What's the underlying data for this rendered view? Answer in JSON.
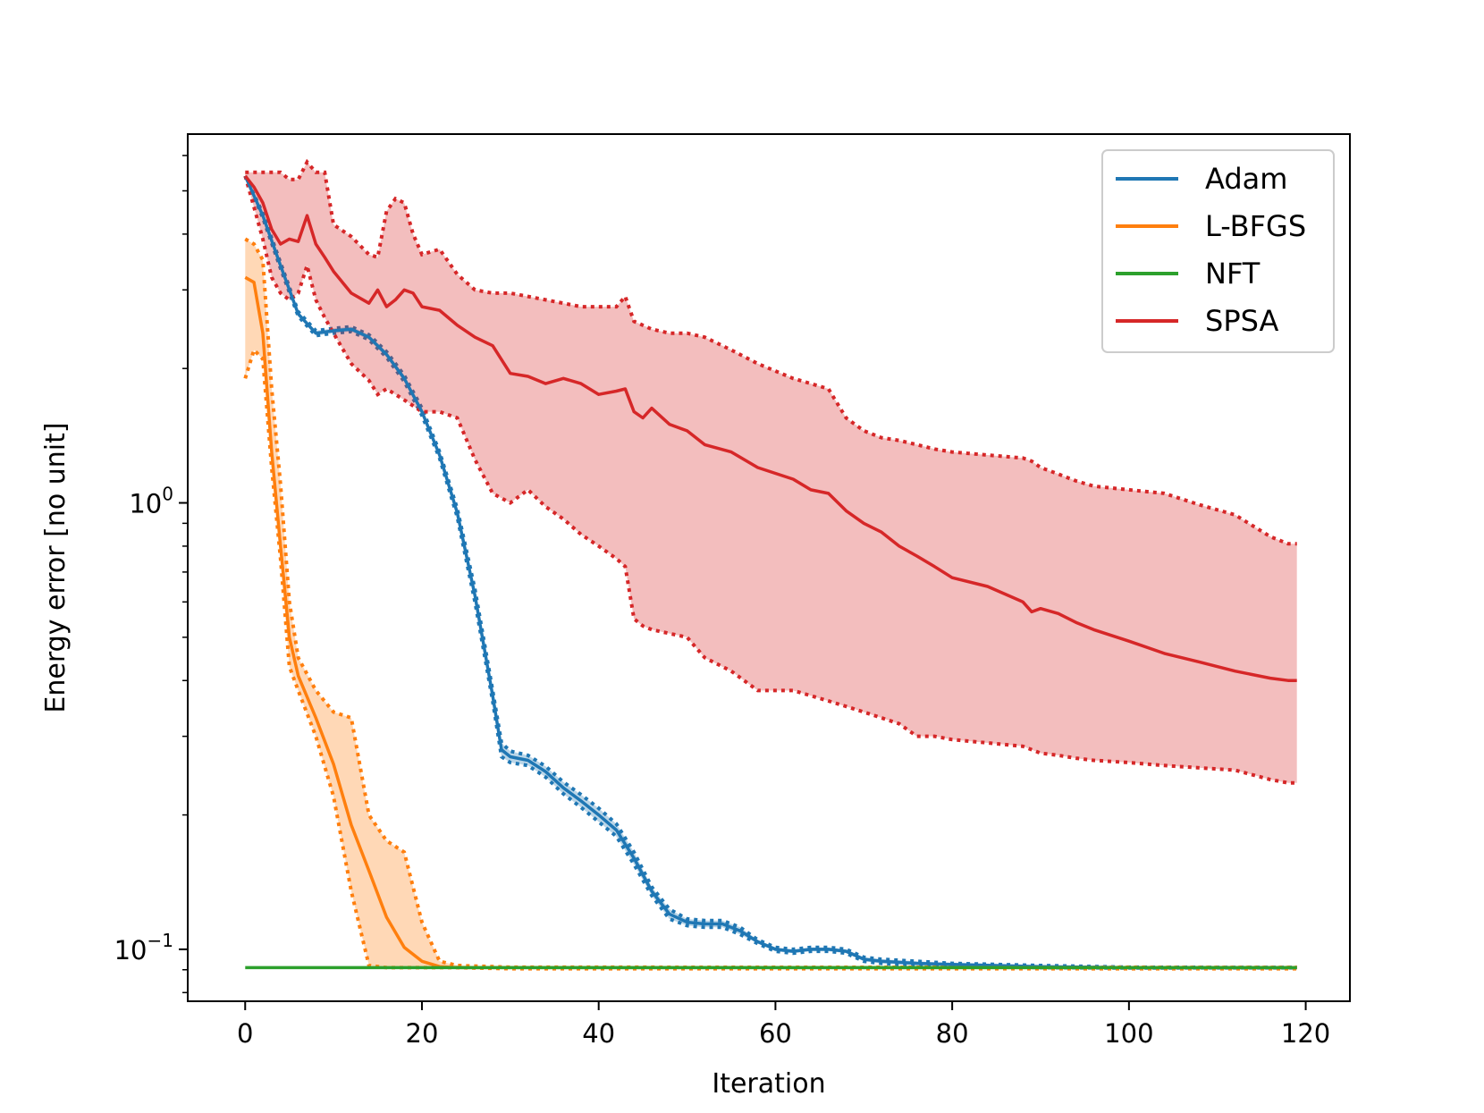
{
  "chart_data": {
    "type": "line",
    "xlabel": "Iteration",
    "ylabel": "Energy error [no unit]",
    "yscale": "log",
    "xlim": [
      -6.5,
      125
    ],
    "ylim": [
      0.0765,
      6.7
    ],
    "x_ticks": [
      0,
      20,
      40,
      60,
      80,
      100,
      120
    ],
    "y_ticks": [
      {
        "value": 1.0,
        "base": "10",
        "exp": "0"
      },
      {
        "value": 0.1,
        "base": "10",
        "exp": "−1"
      }
    ],
    "legend": {
      "placement": "top-right",
      "entries": [
        "Adam",
        "L-BFGS",
        "NFT",
        "SPSA"
      ]
    },
    "series": [
      {
        "name": "Adam",
        "color": "#1f77b4",
        "x": [
          0,
          2,
          4,
          6,
          8,
          10,
          12,
          14,
          16,
          18,
          20,
          22,
          24,
          26,
          28,
          29,
          30,
          32,
          34,
          36,
          38,
          40,
          42,
          44,
          46,
          48,
          50,
          52,
          54,
          56,
          58,
          60,
          62,
          64,
          66,
          68,
          70,
          72,
          76,
          80,
          90,
          100,
          110,
          119
        ],
        "mean": [
          5.4,
          4.4,
          3.4,
          2.65,
          2.4,
          2.43,
          2.45,
          2.35,
          2.15,
          1.9,
          1.6,
          1.28,
          0.95,
          0.62,
          0.37,
          0.28,
          0.27,
          0.265,
          0.25,
          0.23,
          0.215,
          0.2,
          0.185,
          0.16,
          0.135,
          0.12,
          0.115,
          0.114,
          0.114,
          0.11,
          0.104,
          0.1,
          0.099,
          0.1,
          0.1,
          0.099,
          0.095,
          0.094,
          0.093,
          0.0925,
          0.0915,
          0.091,
          0.091,
          0.091
        ],
        "upper": [
          5.4,
          4.45,
          3.45,
          2.68,
          2.43,
          2.46,
          2.48,
          2.38,
          2.18,
          1.93,
          1.63,
          1.3,
          0.97,
          0.64,
          0.38,
          0.29,
          0.278,
          0.272,
          0.257,
          0.237,
          0.222,
          0.207,
          0.191,
          0.165,
          0.138,
          0.123,
          0.117,
          0.116,
          0.116,
          0.112,
          0.105,
          0.101,
          0.1,
          0.101,
          0.101,
          0.1,
          0.096,
          0.095,
          0.094,
          0.093,
          0.092,
          0.0912,
          0.0911,
          0.0911
        ],
        "lower": [
          5.4,
          4.35,
          3.35,
          2.62,
          2.37,
          2.4,
          2.42,
          2.32,
          2.12,
          1.87,
          1.57,
          1.26,
          0.93,
          0.6,
          0.36,
          0.27,
          0.262,
          0.258,
          0.243,
          0.223,
          0.208,
          0.193,
          0.179,
          0.155,
          0.132,
          0.117,
          0.113,
          0.112,
          0.112,
          0.108,
          0.103,
          0.099,
          0.098,
          0.099,
          0.099,
          0.098,
          0.094,
          0.093,
          0.092,
          0.092,
          0.091,
          0.0908,
          0.0909,
          0.0909
        ]
      },
      {
        "name": "L-BFGS",
        "color": "#ff7f0e",
        "x": [
          0,
          1,
          2,
          3,
          4,
          5,
          6,
          8,
          10,
          12,
          14,
          16,
          18,
          20,
          22,
          24,
          30,
          119
        ],
        "mean": [
          3.2,
          3.12,
          2.4,
          1.3,
          0.8,
          0.5,
          0.41,
          0.33,
          0.26,
          0.19,
          0.15,
          0.118,
          0.101,
          0.094,
          0.0915,
          0.091,
          0.091,
          0.091
        ],
        "upper": [
          3.9,
          3.8,
          3.5,
          1.8,
          1.1,
          0.6,
          0.45,
          0.38,
          0.34,
          0.33,
          0.2,
          0.175,
          0.165,
          0.115,
          0.094,
          0.092,
          0.0912,
          0.0911
        ],
        "lower": [
          1.9,
          2.2,
          2.1,
          1.2,
          0.75,
          0.43,
          0.38,
          0.3,
          0.22,
          0.135,
          0.092,
          0.091,
          0.091,
          0.091,
          0.091,
          0.091,
          0.0905,
          0.0905
        ]
      },
      {
        "name": "NFT",
        "color": "#2ca02c",
        "x": [
          0,
          119
        ],
        "mean": [
          0.091,
          0.091
        ]
      },
      {
        "name": "SPSA",
        "color": "#d62728",
        "x": [
          0,
          1,
          2,
          3,
          4,
          5,
          6,
          7,
          8,
          9,
          10,
          12,
          14,
          15,
          16,
          17,
          18,
          19,
          20,
          22,
          24,
          26,
          28,
          30,
          32,
          34,
          36,
          38,
          40,
          42,
          43,
          44,
          45,
          46,
          48,
          50,
          52,
          55,
          58,
          62,
          64,
          66,
          68,
          70,
          72,
          74,
          76,
          78,
          80,
          84,
          88,
          89,
          90,
          92,
          94,
          96,
          100,
          104,
          108,
          112,
          116,
          118,
          119
        ],
        "mean": [
          5.4,
          5.1,
          4.7,
          4.1,
          3.8,
          3.9,
          3.85,
          4.4,
          3.8,
          3.55,
          3.3,
          2.95,
          2.8,
          3.0,
          2.75,
          2.85,
          3.0,
          2.95,
          2.75,
          2.7,
          2.5,
          2.35,
          2.25,
          1.95,
          1.92,
          1.85,
          1.9,
          1.85,
          1.75,
          1.78,
          1.8,
          1.6,
          1.55,
          1.63,
          1.5,
          1.45,
          1.35,
          1.3,
          1.2,
          1.13,
          1.07,
          1.05,
          0.96,
          0.9,
          0.86,
          0.8,
          0.76,
          0.72,
          0.68,
          0.65,
          0.6,
          0.57,
          0.58,
          0.565,
          0.54,
          0.52,
          0.49,
          0.46,
          0.44,
          0.42,
          0.405,
          0.4,
          0.4
        ],
        "upper": [
          5.5,
          5.5,
          5.5,
          5.5,
          5.5,
          5.3,
          5.3,
          5.8,
          5.5,
          5.5,
          4.2,
          3.95,
          3.6,
          3.55,
          4.5,
          4.8,
          4.7,
          4.0,
          3.6,
          3.7,
          3.25,
          3.0,
          2.95,
          2.95,
          2.9,
          2.85,
          2.8,
          2.75,
          2.75,
          2.75,
          2.9,
          2.55,
          2.5,
          2.45,
          2.4,
          2.4,
          2.35,
          2.2,
          2.05,
          1.9,
          1.85,
          1.8,
          1.55,
          1.45,
          1.4,
          1.38,
          1.35,
          1.32,
          1.3,
          1.28,
          1.26,
          1.24,
          1.2,
          1.16,
          1.12,
          1.09,
          1.07,
          1.05,
          0.99,
          0.94,
          0.84,
          0.81,
          0.81
        ],
        "lower": [
          5.4,
          4.6,
          3.9,
          3.2,
          2.95,
          2.85,
          2.95,
          3.4,
          2.85,
          2.6,
          2.4,
          2.05,
          1.88,
          1.75,
          1.8,
          1.75,
          1.7,
          1.65,
          1.6,
          1.6,
          1.55,
          1.25,
          1.05,
          1.0,
          1.07,
          0.98,
          0.92,
          0.85,
          0.8,
          0.75,
          0.72,
          0.55,
          0.53,
          0.52,
          0.51,
          0.5,
          0.45,
          0.42,
          0.38,
          0.38,
          0.37,
          0.36,
          0.35,
          0.34,
          0.33,
          0.32,
          0.3,
          0.3,
          0.295,
          0.29,
          0.285,
          0.28,
          0.275,
          0.272,
          0.268,
          0.265,
          0.262,
          0.258,
          0.255,
          0.252,
          0.24,
          0.236,
          0.236
        ]
      }
    ]
  }
}
